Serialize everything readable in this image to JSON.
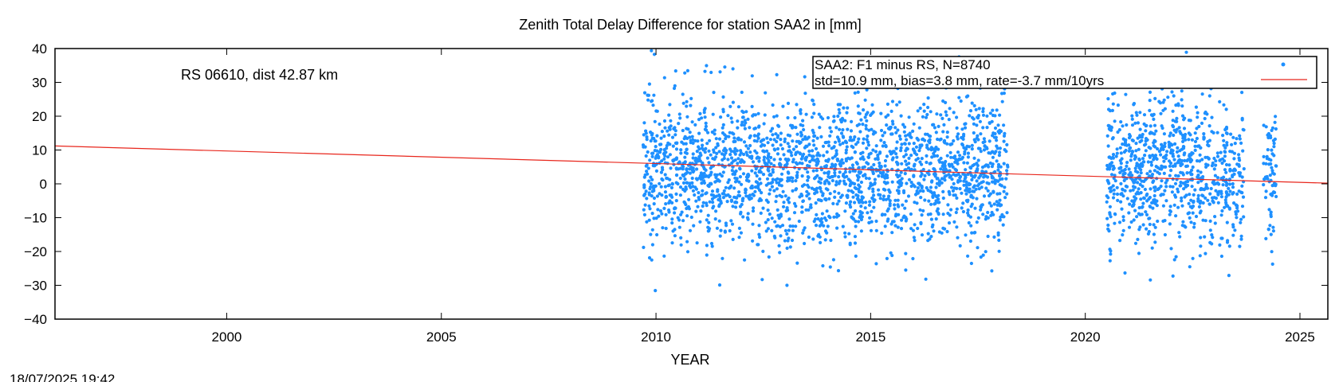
{
  "chart_data": {
    "type": "scatter",
    "title": "Zenith Total Delay Difference for station SAA2 in [mm]",
    "xlabel": "YEAR",
    "ylabel": "",
    "xlim": [
      1996,
      2025.65
    ],
    "ylim": [
      -40,
      40
    ],
    "x_ticks": [
      2000,
      2005,
      2010,
      2015,
      2020,
      2025
    ],
    "y_ticks": [
      -40,
      -30,
      -20,
      -10,
      0,
      10,
      20,
      30,
      40
    ],
    "grid": false,
    "legend_position": "top-right",
    "annotation": "RS 06610, dist 42.87 km",
    "footer_timestamp": "18/07/2025 19:42",
    "series": [
      {
        "name": "SAA2: F1 minus RS, N=8740",
        "style": "points",
        "color": "#1E90FF",
        "n": 8740,
        "observation_periods": [
          {
            "start": 2009.7,
            "end": 2018.2,
            "typical_range": [
              -20,
              25
            ],
            "extreme_range": [
              -40,
              40
            ]
          },
          {
            "start": 2020.5,
            "end": 2023.7,
            "typical_range": [
              -20,
              25
            ],
            "extreme_range": [
              -37,
              40
            ]
          },
          {
            "start": 2024.15,
            "end": 2024.45,
            "typical_range": [
              -20,
              15
            ],
            "extreme_range": [
              -29,
              21
            ]
          }
        ]
      },
      {
        "name": "std=10.9 mm, bias=3.8 mm, rate=-3.7 mm/10yrs",
        "style": "line",
        "color": "#E8261C",
        "x": [
          1996,
          2025.65
        ],
        "y": [
          11.2,
          0.2
        ]
      }
    ],
    "stats": {
      "std_mm": 10.9,
      "bias_mm": 3.8,
      "rate_mm_per_10yrs": -3.7
    }
  }
}
